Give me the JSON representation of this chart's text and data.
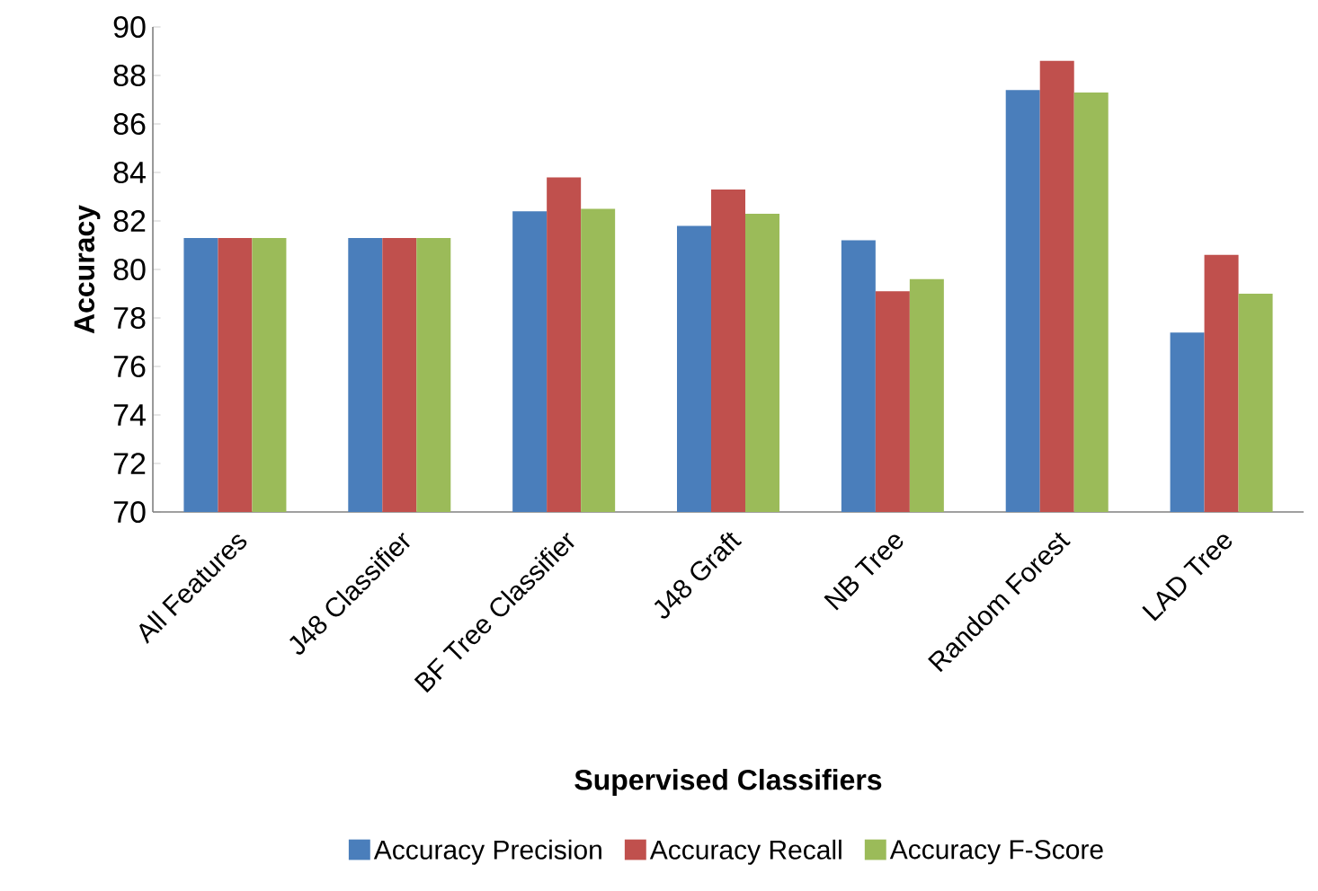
{
  "chart_data": {
    "type": "bar",
    "xlabel": "Supervised Classifiers",
    "ylabel": "Accuracy",
    "categories": [
      "All Features",
      "J48 Classifier",
      "BF Tree Classifier",
      "J48 Graft",
      "NB Tree",
      "Random Forest",
      "LAD Tree"
    ],
    "series": [
      {
        "name": "Accuracy Precision",
        "color": "#4a7ebb",
        "values": [
          81.3,
          81.3,
          82.4,
          81.8,
          81.2,
          87.4,
          77.4
        ]
      },
      {
        "name": "Accuracy Recall",
        "color": "#c0504d",
        "values": [
          81.3,
          81.3,
          83.8,
          83.3,
          79.1,
          88.6,
          80.6
        ]
      },
      {
        "name": "Accuracy F-Score",
        "color": "#9bbb59",
        "values": [
          81.3,
          81.3,
          82.5,
          82.3,
          79.6,
          87.3,
          79.0
        ]
      }
    ],
    "ylim": [
      70,
      90
    ],
    "yticks": [
      70,
      72,
      74,
      76,
      78,
      80,
      82,
      84,
      86,
      88,
      90
    ],
    "grid": false,
    "legend": "bottom"
  }
}
